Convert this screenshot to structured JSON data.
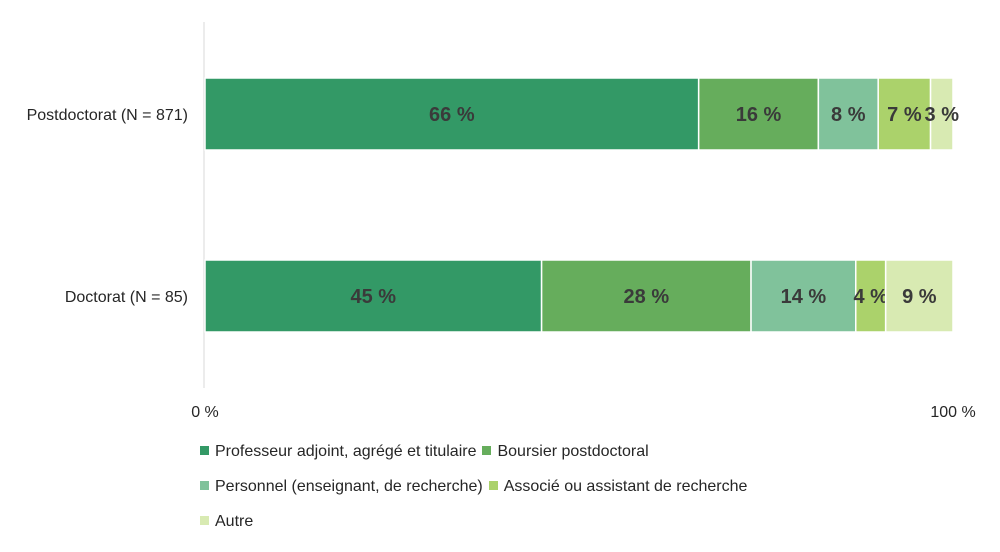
{
  "chart_data": {
    "type": "bar",
    "orientation": "horizontal",
    "stacked": true,
    "categories": [
      "Postdoctorat (N = 871)",
      "Doctorat (N = 85)"
    ],
    "series": [
      {
        "name": "Professeur adjoint, agrégé et titulaire",
        "values": [
          66,
          45
        ],
        "labels": [
          "66 %",
          "45 %"
        ],
        "color": "#339966"
      },
      {
        "name": "Boursier postdoctoral",
        "values": [
          16,
          28
        ],
        "labels": [
          "16 %",
          "28 %"
        ],
        "color": "#66ad5c"
      },
      {
        "name": "Personnel (enseignant, de recherche)",
        "values": [
          8,
          14
        ],
        "labels": [
          "8 %",
          "14 %"
        ],
        "color": "#80c29b"
      },
      {
        "name": "Associé ou assistant de recherche",
        "values": [
          7,
          4
        ],
        "labels": [
          "7 %",
          "4 %"
        ],
        "color": "#abd26b"
      },
      {
        "name": "Autre",
        "values": [
          3,
          9
        ],
        "labels": [
          "3 %",
          "9 %"
        ],
        "color": "#d8eab2"
      }
    ],
    "xlim": [
      0,
      100
    ],
    "xticks": [
      {
        "value": 0,
        "label": "0 %"
      },
      {
        "value": 100,
        "label": "100 %"
      }
    ],
    "grid": false,
    "legend_position": "bottom"
  }
}
